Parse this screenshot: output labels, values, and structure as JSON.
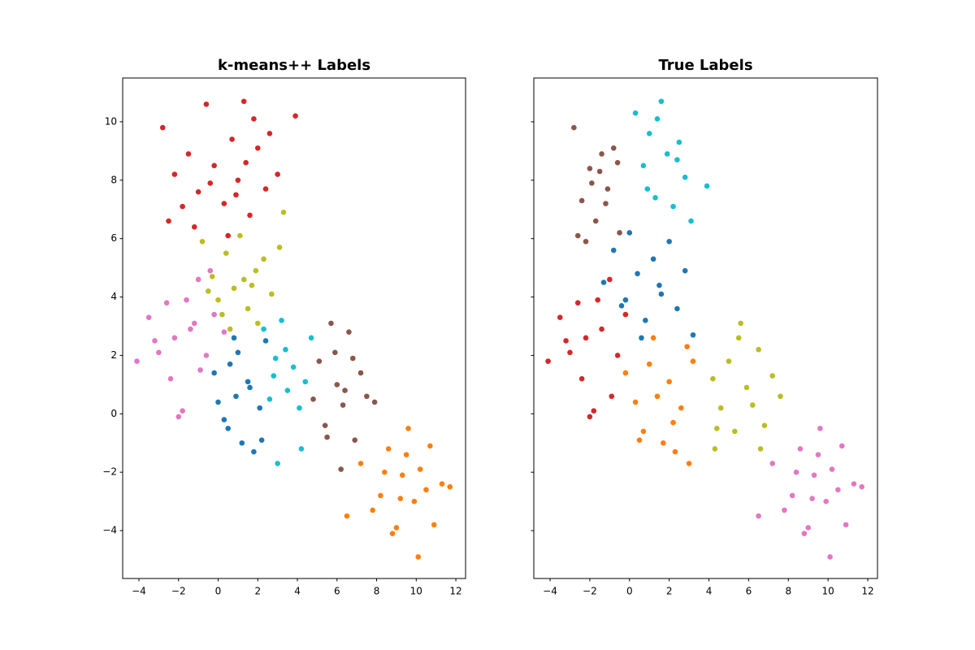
{
  "chart_data": [
    {
      "type": "scatter",
      "title": "k-means++ Labels",
      "xlim": [
        -4.82,
        12.49
      ],
      "ylim": [
        -5.64,
        11.5
      ],
      "xticks": [
        {
          "value": -4,
          "label": "−4"
        },
        {
          "value": -2,
          "label": "−2"
        },
        0,
        2,
        4,
        6,
        8,
        10,
        12
      ],
      "yticks": [
        {
          "value": -4,
          "label": "−4"
        },
        {
          "value": -2,
          "label": "−2"
        },
        0,
        2,
        4,
        6,
        8,
        10
      ],
      "ytick_labels": true,
      "series": [
        {
          "color": "#d62728",
          "x": [
            -2.8,
            -2.2,
            -1.8,
            -1.5,
            -1,
            -0.6,
            -0.2,
            0.3,
            0.7,
            1,
            1.3,
            1.6,
            2,
            2.4,
            3,
            -1.2,
            0.5,
            1.8,
            -2.5,
            3.9,
            1.4,
            -0.4,
            0.9,
            2.6
          ],
          "values": [
            9.8,
            8.2,
            7.1,
            8.9,
            7.6,
            10.6,
            8.5,
            7.2,
            9.4,
            8,
            10.7,
            6.8,
            9.1,
            7.7,
            8.2,
            6.4,
            6.1,
            10.1,
            6.6,
            10.2,
            8.6,
            7.9,
            7.5,
            9.6
          ]
        },
        {
          "color": "#bcbd22",
          "x": [
            -0.8,
            -0.3,
            0,
            0.4,
            0.8,
            1.1,
            1.5,
            1.9,
            2.3,
            2.7,
            3.1,
            0.2,
            1.3,
            2,
            -0.5,
            3.3,
            0.6,
            1.7
          ],
          "values": [
            5.9,
            4.7,
            3.9,
            5.5,
            4.3,
            6.1,
            3.6,
            4.9,
            5.3,
            4.1,
            5.7,
            3.4,
            4.6,
            3.1,
            4.2,
            6.9,
            2.9,
            4.4
          ]
        },
        {
          "color": "#e377c2",
          "x": [
            -4.1,
            -3.5,
            -3,
            -2.6,
            -2.2,
            -1.8,
            -1.4,
            -1,
            -0.6,
            -0.2,
            0.3,
            -2.4,
            -1.6,
            -0.9,
            -3.2,
            -2,
            -1.2,
            -0.4
          ],
          "values": [
            1.8,
            3.3,
            2.1,
            3.8,
            2.6,
            0.1,
            2.9,
            4.6,
            2,
            3.4,
            2.8,
            1.2,
            3.9,
            1.5,
            2.5,
            -0.1,
            3.1,
            4.9
          ]
        },
        {
          "color": "#1f77b4",
          "x": [
            -0.2,
            0,
            0.3,
            0.6,
            0.9,
            1.2,
            1.5,
            1.8,
            2.1,
            2.4,
            0.5,
            1,
            1.6,
            2.2,
            0.8
          ],
          "values": [
            1.4,
            0.4,
            -0.2,
            1.7,
            0.6,
            -1,
            1.1,
            -1.3,
            0.2,
            2.5,
            -0.5,
            2.1,
            0.9,
            -0.9,
            2.6
          ]
        },
        {
          "color": "#17becf",
          "x": [
            2.3,
            2.6,
            2.9,
            3.2,
            3.5,
            3.8,
            4.1,
            4.4,
            4.7,
            3,
            2.8,
            4.2,
            3.4
          ],
          "values": [
            2.9,
            0.5,
            1.9,
            3.2,
            0.8,
            1.6,
            0.2,
            1.1,
            2.6,
            -1.7,
            1.3,
            -1.2,
            2.2
          ]
        },
        {
          "color": "#8c564b",
          "x": [
            4.8,
            5.1,
            5.4,
            5.7,
            6,
            6.3,
            6.6,
            6.9,
            7.2,
            7.5,
            7.9,
            5.5,
            6.2,
            6.8,
            5.9,
            6.4
          ],
          "values": [
            0.5,
            1.8,
            -0.4,
            3.1,
            1,
            0.3,
            2.8,
            -0.9,
            1.4,
            0.6,
            0.4,
            -0.8,
            -1.9,
            1.9,
            2.1,
            0.8
          ]
        },
        {
          "color": "#ff7f0e",
          "x": [
            7.2,
            7.8,
            8.2,
            8.6,
            9,
            9.3,
            9.6,
            9.9,
            10.2,
            10.5,
            10.9,
            11.3,
            11.7,
            8.8,
            9.5,
            10.1,
            6.5,
            9.2,
            8.4,
            10.7
          ],
          "values": [
            -1.7,
            -3.3,
            -2.8,
            -1.2,
            -3.9,
            -2.1,
            -0.5,
            -3,
            -1.9,
            -2.6,
            -3.8,
            -2.4,
            -2.5,
            -4.1,
            -1.4,
            -4.9,
            -3.5,
            -2.9,
            -2,
            -1.1
          ]
        }
      ]
    },
    {
      "type": "scatter",
      "title": "True Labels",
      "xlim": [
        -4.82,
        12.49
      ],
      "ylim": [
        -5.64,
        11.5
      ],
      "xticks": [
        {
          "value": -4,
          "label": "−4"
        },
        {
          "value": -2,
          "label": "−2"
        },
        0,
        2,
        4,
        6,
        8,
        10,
        12
      ],
      "yticks": [
        -4,
        -2,
        0,
        2,
        4,
        6,
        8,
        10
      ],
      "ytick_labels": false,
      "series": [
        {
          "color": "#8c564b",
          "x": [
            -2.8,
            -2.4,
            -2,
            -1.7,
            -1.4,
            -1.1,
            -0.8,
            -0.5,
            -2.6,
            -1.9,
            -1.2,
            -0.6,
            -2.2,
            -1.5
          ],
          "values": [
            9.8,
            7.3,
            8.4,
            6.6,
            8.9,
            7.7,
            9.1,
            6.2,
            6.1,
            7.9,
            7.2,
            8.6,
            5.9,
            8.3
          ]
        },
        {
          "color": "#17becf",
          "x": [
            0.3,
            0.7,
            1,
            1.3,
            1.6,
            1.9,
            2.2,
            2.5,
            2.8,
            3.1,
            3.9,
            1.4,
            2.4,
            0.9
          ],
          "values": [
            10.3,
            8.5,
            9.6,
            7.4,
            10.7,
            8.9,
            7.1,
            9.3,
            8.1,
            6.6,
            7.8,
            10.1,
            8.7,
            7.7
          ]
        },
        {
          "color": "#1f77b4",
          "x": [
            -1.3,
            -0.8,
            -0.4,
            0,
            0.4,
            0.8,
            1.2,
            1.6,
            2,
            2.4,
            2.8,
            3.2,
            0.6,
            1.5,
            -0.2
          ],
          "values": [
            4.5,
            5.6,
            3.7,
            6.2,
            4.8,
            3.2,
            5.3,
            4.1,
            5.9,
            3.6,
            4.9,
            2.7,
            2.6,
            4.4,
            3.9
          ]
        },
        {
          "color": "#d62728",
          "x": [
            -4.1,
            -3.5,
            -3,
            -2.6,
            -2.2,
            -1.8,
            -1.4,
            -1,
            -0.6,
            -0.2,
            -2.4,
            -1.6,
            -3.2,
            -2,
            -0.9
          ],
          "values": [
            1.8,
            3.3,
            2.1,
            3.8,
            2.6,
            0.1,
            2.9,
            4.6,
            2,
            3.4,
            1.2,
            3.9,
            2.5,
            -0.1,
            0.6
          ]
        },
        {
          "color": "#ff7f0e",
          "x": [
            -0.2,
            0.3,
            0.7,
            1,
            1.4,
            1.7,
            2,
            2.3,
            2.6,
            2.9,
            3.2,
            1.2,
            2.2,
            3,
            0.5
          ],
          "values": [
            1.4,
            0.4,
            -0.6,
            1.7,
            0.6,
            -1,
            1.1,
            -1.3,
            0.2,
            2.3,
            1.8,
            2.6,
            -0.3,
            -1.7,
            -0.9
          ]
        },
        {
          "color": "#bcbd22",
          "x": [
            4.2,
            4.6,
            5,
            5.3,
            5.6,
            5.9,
            6.2,
            6.5,
            6.8,
            7.2,
            7.6,
            4.4,
            5.5,
            6.6,
            4.3
          ],
          "values": [
            1.2,
            0.2,
            1.8,
            -0.6,
            3.1,
            0.9,
            0.3,
            2.2,
            -0.4,
            1.3,
            0.6,
            -0.5,
            2.6,
            -1.2,
            -1.2
          ]
        },
        {
          "color": "#e377c2",
          "x": [
            7.2,
            7.8,
            8.2,
            8.6,
            9,
            9.3,
            9.6,
            9.9,
            10.2,
            10.5,
            10.9,
            11.3,
            11.7,
            8.8,
            9.5,
            10.1,
            6.5,
            9.2,
            8.4,
            10.7
          ],
          "values": [
            -1.7,
            -3.3,
            -2.8,
            -1.2,
            -3.9,
            -2.1,
            -0.5,
            -3,
            -1.9,
            -2.6,
            -3.8,
            -2.4,
            -2.5,
            -4.1,
            -1.4,
            -4.9,
            -3.5,
            -2.9,
            -2,
            -1.1
          ]
        }
      ]
    }
  ]
}
